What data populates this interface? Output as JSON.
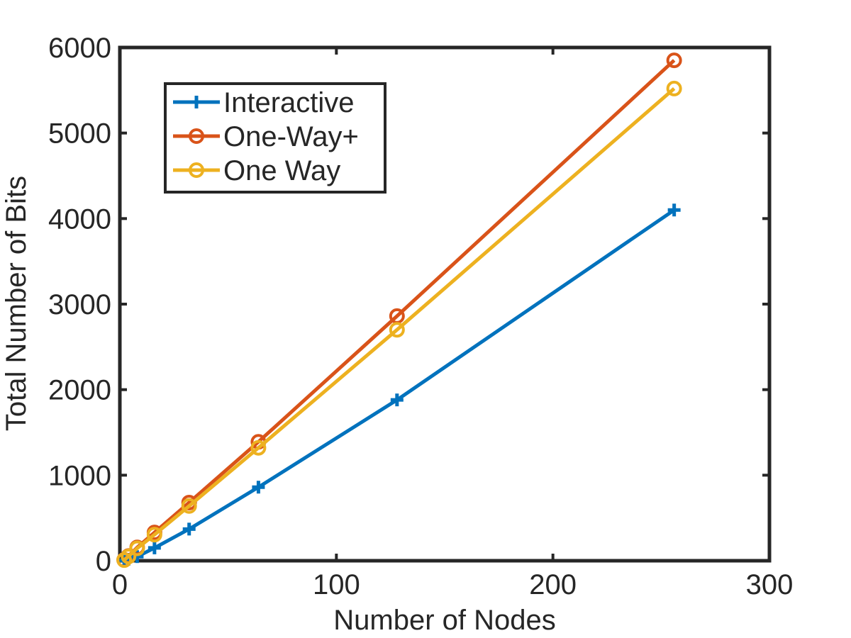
{
  "chart_data": {
    "type": "line",
    "title": "",
    "xlabel": "Number of Nodes",
    "ylabel": "Total Number of Bits",
    "xlim": [
      0,
      300
    ],
    "ylim": [
      0,
      6000
    ],
    "x_ticks": [
      0,
      100,
      200,
      300
    ],
    "y_ticks": [
      0,
      1000,
      2000,
      3000,
      4000,
      5000,
      6000
    ],
    "x_tick_labels": [
      "0",
      "100",
      "200",
      "300"
    ],
    "y_tick_labels": [
      "0",
      "1000",
      "2000",
      "3000",
      "4000",
      "5000",
      "6000"
    ],
    "grid": false,
    "legend_position": "top-left",
    "x": [
      2,
      4,
      8,
      16,
      32,
      64,
      128,
      256
    ],
    "series": [
      {
        "name": "Interactive",
        "color": "#0072BD",
        "marker": "plus",
        "values": [
          4,
          16,
          48,
          150,
          370,
          860,
          1880,
          4100
        ]
      },
      {
        "name": "One-Way+",
        "color": "#D95319",
        "marker": "circle",
        "values": [
          10,
          55,
          155,
          330,
          680,
          1390,
          2860,
          5850
        ]
      },
      {
        "name": "One Way",
        "color": "#EDB120",
        "marker": "circle",
        "values": [
          8,
          50,
          145,
          305,
          640,
          1320,
          2700,
          5520
        ]
      }
    ]
  }
}
